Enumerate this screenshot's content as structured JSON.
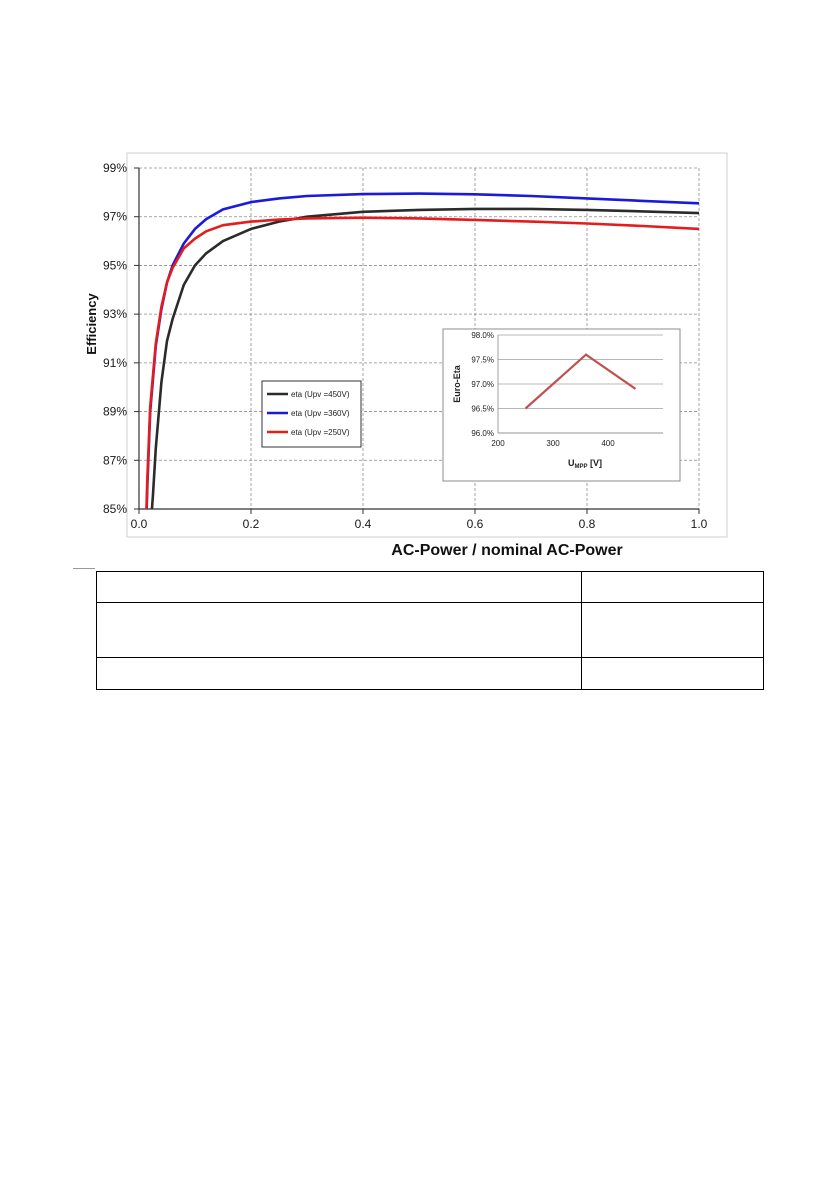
{
  "chart_data": [
    {
      "type": "line",
      "title": "",
      "xlabel": "AC-Power / nominal AC-Power",
      "ylabel": "Efficiency",
      "xlim": [
        0.0,
        1.0
      ],
      "ylim": [
        85,
        99
      ],
      "xticks": [
        "0.0",
        "0.2",
        "0.4",
        "0.6",
        "0.8",
        "1.0"
      ],
      "yticks": [
        "85%",
        "87%",
        "89%",
        "91%",
        "93%",
        "95%",
        "97%",
        "99%"
      ],
      "grid": true,
      "legend_position": "lower-left",
      "series": [
        {
          "name": "eta (Upv =450V)",
          "color": "#2b2b2b",
          "x": [
            0.015,
            0.02,
            0.025,
            0.03,
            0.04,
            0.05,
            0.06,
            0.08,
            0.1,
            0.12,
            0.15,
            0.2,
            0.25,
            0.3,
            0.4,
            0.5,
            0.6,
            0.7,
            0.8,
            0.9,
            1.0
          ],
          "y": [
            82.0,
            84.0,
            85.6,
            87.5,
            90.2,
            91.9,
            92.8,
            94.2,
            95.0,
            95.5,
            96.0,
            96.5,
            96.8,
            97.0,
            97.2,
            97.28,
            97.32,
            97.32,
            97.28,
            97.22,
            97.15
          ]
        },
        {
          "name": "eta (Upv =360V)",
          "color": "#1a1adb",
          "x": [
            0.01,
            0.015,
            0.02,
            0.03,
            0.04,
            0.05,
            0.06,
            0.08,
            0.1,
            0.12,
            0.15,
            0.2,
            0.25,
            0.3,
            0.4,
            0.5,
            0.6,
            0.7,
            0.8,
            0.9,
            1.0
          ],
          "y": [
            82.0,
            86.0,
            89.0,
            91.7,
            93.2,
            94.3,
            95.0,
            95.9,
            96.5,
            96.9,
            97.3,
            97.6,
            97.75,
            97.85,
            97.93,
            97.95,
            97.92,
            97.85,
            97.75,
            97.65,
            97.55
          ]
        },
        {
          "name": "eta (Upv =250V)",
          "color": "#e51c1c",
          "x": [
            0.01,
            0.015,
            0.02,
            0.03,
            0.04,
            0.05,
            0.06,
            0.08,
            0.1,
            0.12,
            0.15,
            0.2,
            0.25,
            0.3,
            0.4,
            0.5,
            0.6,
            0.7,
            0.8,
            0.9,
            1.0
          ],
          "y": [
            82.5,
            86.3,
            89.2,
            91.8,
            93.3,
            94.3,
            94.9,
            95.7,
            96.1,
            96.4,
            96.65,
            96.8,
            96.88,
            96.93,
            96.96,
            96.93,
            96.87,
            96.8,
            96.72,
            96.62,
            96.5
          ]
        }
      ]
    },
    {
      "type": "line",
      "title": "",
      "xlabel": "U_MPP [V]",
      "xlabel_main": "U",
      "xlabel_sub": "MPP",
      "xlabel_suffix": " [V]",
      "ylabel": "Euro-Eta",
      "xlim": [
        200,
        500
      ],
      "ylim": [
        96.0,
        98.0
      ],
      "xticks": [
        "200",
        "300",
        "400"
      ],
      "yticks": [
        "96.0%",
        "96.5%",
        "97.0%",
        "97.5%",
        "98.0%"
      ],
      "grid": true,
      "series": [
        {
          "name": "",
          "color": "#c0504d",
          "x": [
            250,
            360,
            450
          ],
          "y": [
            96.5,
            97.6,
            96.9
          ]
        }
      ]
    }
  ],
  "table": {
    "rows": [
      [
        "",
        ""
      ],
      [
        "",
        ""
      ],
      [
        "",
        ""
      ]
    ]
  }
}
